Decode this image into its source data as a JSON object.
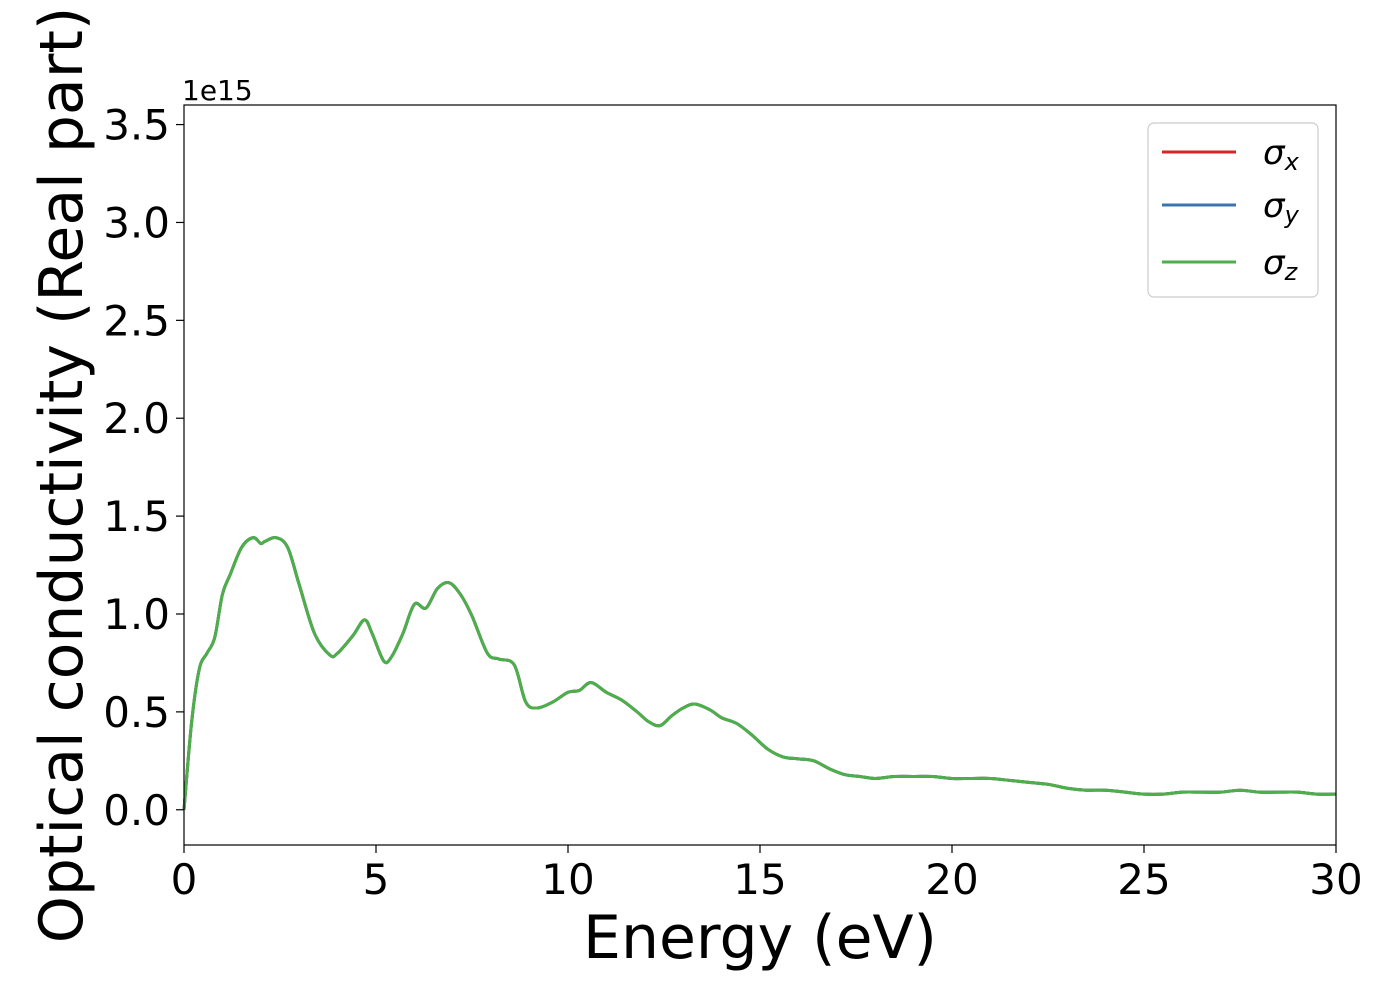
{
  "chart_data": {
    "type": "line",
    "title": "",
    "xlabel": "Energy (eV)",
    "ylabel": "Optical conductivity (Real part)",
    "y_offset_label": "1e15",
    "xlim": [
      0,
      30
    ],
    "ylim": [
      -0.18,
      3.6
    ],
    "xticks": [
      0,
      5,
      10,
      15,
      20,
      25,
      30
    ],
    "yticks": [
      0.0,
      0.5,
      1.0,
      1.5,
      2.0,
      2.5,
      3.0,
      3.5
    ],
    "xtick_labels": [
      "0",
      "5",
      "10",
      "15",
      "20",
      "25",
      "30"
    ],
    "ytick_labels": [
      "0.0",
      "0.5",
      "1.0",
      "1.5",
      "2.0",
      "2.5",
      "3.0",
      "3.5"
    ],
    "grid": false,
    "legend_position": "top-right",
    "x": [
      0,
      0.2,
      0.4,
      0.6,
      0.8,
      1.0,
      1.2,
      1.5,
      1.8,
      2.0,
      2.1,
      2.4,
      2.7,
      3.0,
      3.4,
      3.8,
      4.0,
      4.4,
      4.7,
      4.9,
      5.2,
      5.4,
      5.7,
      6.0,
      6.3,
      6.6,
      6.9,
      7.2,
      7.5,
      7.9,
      8.2,
      8.6,
      8.9,
      9.2,
      9.6,
      10.0,
      10.3,
      10.6,
      11.0,
      11.4,
      11.8,
      12.1,
      12.4,
      12.7,
      13.0,
      13.3,
      13.7,
      14.0,
      14.4,
      14.8,
      15.2,
      15.6,
      16.0,
      16.4,
      16.8,
      17.2,
      17.6,
      18.0,
      18.5,
      19.0,
      19.5,
      20.0,
      20.5,
      21.0,
      21.5,
      22.0,
      22.5,
      23.0,
      23.5,
      24.0,
      24.5,
      25.0,
      25.5,
      26.0,
      26.5,
      27.0,
      27.5,
      28.0,
      28.5,
      29.0,
      29.5,
      30.0
    ],
    "series": [
      {
        "name": "σx",
        "color": "#d62728",
        "values": [
          0.0,
          0.45,
          0.72,
          0.8,
          0.88,
          1.1,
          1.2,
          1.34,
          1.39,
          1.36,
          1.37,
          1.39,
          1.34,
          1.15,
          0.9,
          0.79,
          0.8,
          0.89,
          0.97,
          0.9,
          0.76,
          0.78,
          0.9,
          1.05,
          1.03,
          1.13,
          1.16,
          1.1,
          0.99,
          0.8,
          0.77,
          0.74,
          0.55,
          0.52,
          0.55,
          0.6,
          0.61,
          0.65,
          0.6,
          0.56,
          0.5,
          0.45,
          0.43,
          0.48,
          0.52,
          0.54,
          0.51,
          0.47,
          0.44,
          0.38,
          0.31,
          0.27,
          0.26,
          0.25,
          0.21,
          0.18,
          0.17,
          0.16,
          0.17,
          0.17,
          0.17,
          0.16,
          0.16,
          0.16,
          0.15,
          0.14,
          0.13,
          0.11,
          0.1,
          0.1,
          0.09,
          0.08,
          0.08,
          0.09,
          0.09,
          0.09,
          0.1,
          0.09,
          0.09,
          0.09,
          0.08,
          0.08
        ]
      },
      {
        "name": "σy",
        "color": "#3b75af",
        "values": [
          0.0,
          0.45,
          0.72,
          0.8,
          0.88,
          1.1,
          1.2,
          1.34,
          1.39,
          1.36,
          1.37,
          1.39,
          1.34,
          1.15,
          0.9,
          0.79,
          0.8,
          0.89,
          0.97,
          0.9,
          0.76,
          0.78,
          0.9,
          1.05,
          1.03,
          1.13,
          1.16,
          1.1,
          0.99,
          0.8,
          0.77,
          0.74,
          0.55,
          0.52,
          0.55,
          0.6,
          0.61,
          0.65,
          0.6,
          0.56,
          0.5,
          0.45,
          0.43,
          0.48,
          0.52,
          0.54,
          0.51,
          0.47,
          0.44,
          0.38,
          0.31,
          0.27,
          0.26,
          0.25,
          0.21,
          0.18,
          0.17,
          0.16,
          0.17,
          0.17,
          0.17,
          0.16,
          0.16,
          0.16,
          0.15,
          0.14,
          0.13,
          0.11,
          0.1,
          0.1,
          0.09,
          0.08,
          0.08,
          0.09,
          0.09,
          0.09,
          0.1,
          0.09,
          0.09,
          0.09,
          0.08,
          0.08
        ]
      },
      {
        "name": "σz",
        "color": "#4daf4a",
        "values": [
          0.0,
          0.45,
          0.72,
          0.8,
          0.88,
          1.1,
          1.2,
          1.34,
          1.39,
          1.36,
          1.37,
          1.39,
          1.34,
          1.15,
          0.9,
          0.79,
          0.8,
          0.89,
          0.97,
          0.9,
          0.76,
          0.78,
          0.9,
          1.05,
          1.03,
          1.13,
          1.16,
          1.1,
          0.99,
          0.8,
          0.77,
          0.74,
          0.55,
          0.52,
          0.55,
          0.6,
          0.61,
          0.65,
          0.6,
          0.56,
          0.5,
          0.45,
          0.43,
          0.48,
          0.52,
          0.54,
          0.51,
          0.47,
          0.44,
          0.38,
          0.31,
          0.27,
          0.26,
          0.25,
          0.21,
          0.18,
          0.17,
          0.16,
          0.17,
          0.17,
          0.17,
          0.16,
          0.16,
          0.16,
          0.15,
          0.14,
          0.13,
          0.11,
          0.1,
          0.1,
          0.09,
          0.08,
          0.08,
          0.09,
          0.09,
          0.09,
          0.1,
          0.09,
          0.09,
          0.09,
          0.08,
          0.08
        ]
      }
    ],
    "legend_symbols": [
      "σ",
      "σ",
      "σ"
    ],
    "legend_subscripts": [
      "x",
      "y",
      "z"
    ]
  }
}
